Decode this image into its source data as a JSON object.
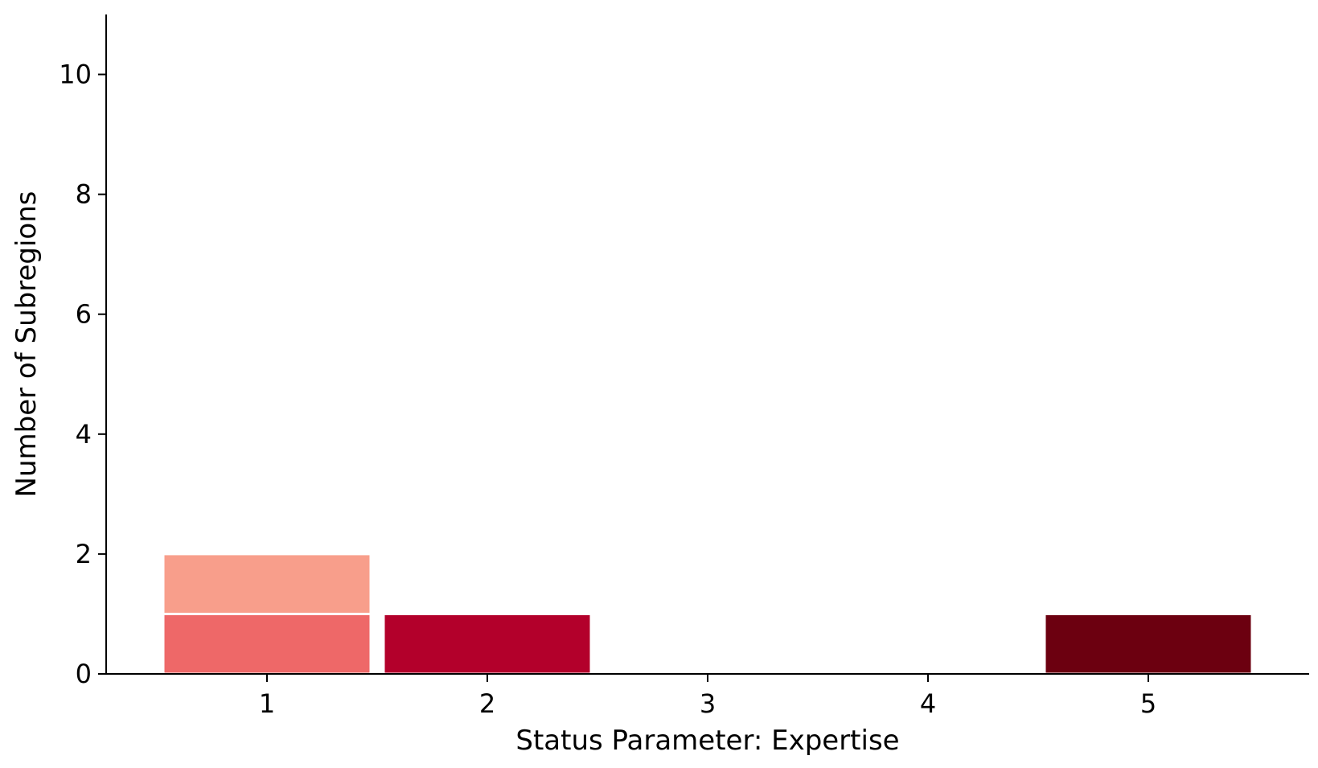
{
  "chart_data": {
    "type": "bar",
    "stacked": true,
    "xlabel": "Status Parameter: Expertise",
    "ylabel": "Number of Subregions",
    "categories": [
      "1",
      "2",
      "3",
      "4",
      "5"
    ],
    "x_ticks": [
      "1",
      "2",
      "3",
      "4",
      "5"
    ],
    "y_ticks": [
      "0",
      "2",
      "4",
      "6",
      "8",
      "10"
    ],
    "ylim": [
      0,
      11
    ],
    "grid": false,
    "legend": "none",
    "bars": [
      {
        "x": 1,
        "segments": [
          {
            "value": 1,
            "color": "#ee6868"
          },
          {
            "value": 1,
            "color": "#f89e8b"
          }
        ]
      },
      {
        "x": 2,
        "segments": [
          {
            "value": 1,
            "color": "#b3002b"
          }
        ]
      },
      {
        "x": 3,
        "segments": []
      },
      {
        "x": 4,
        "segments": []
      },
      {
        "x": 5,
        "segments": [
          {
            "value": 1,
            "color": "#6c0010"
          }
        ]
      }
    ]
  }
}
